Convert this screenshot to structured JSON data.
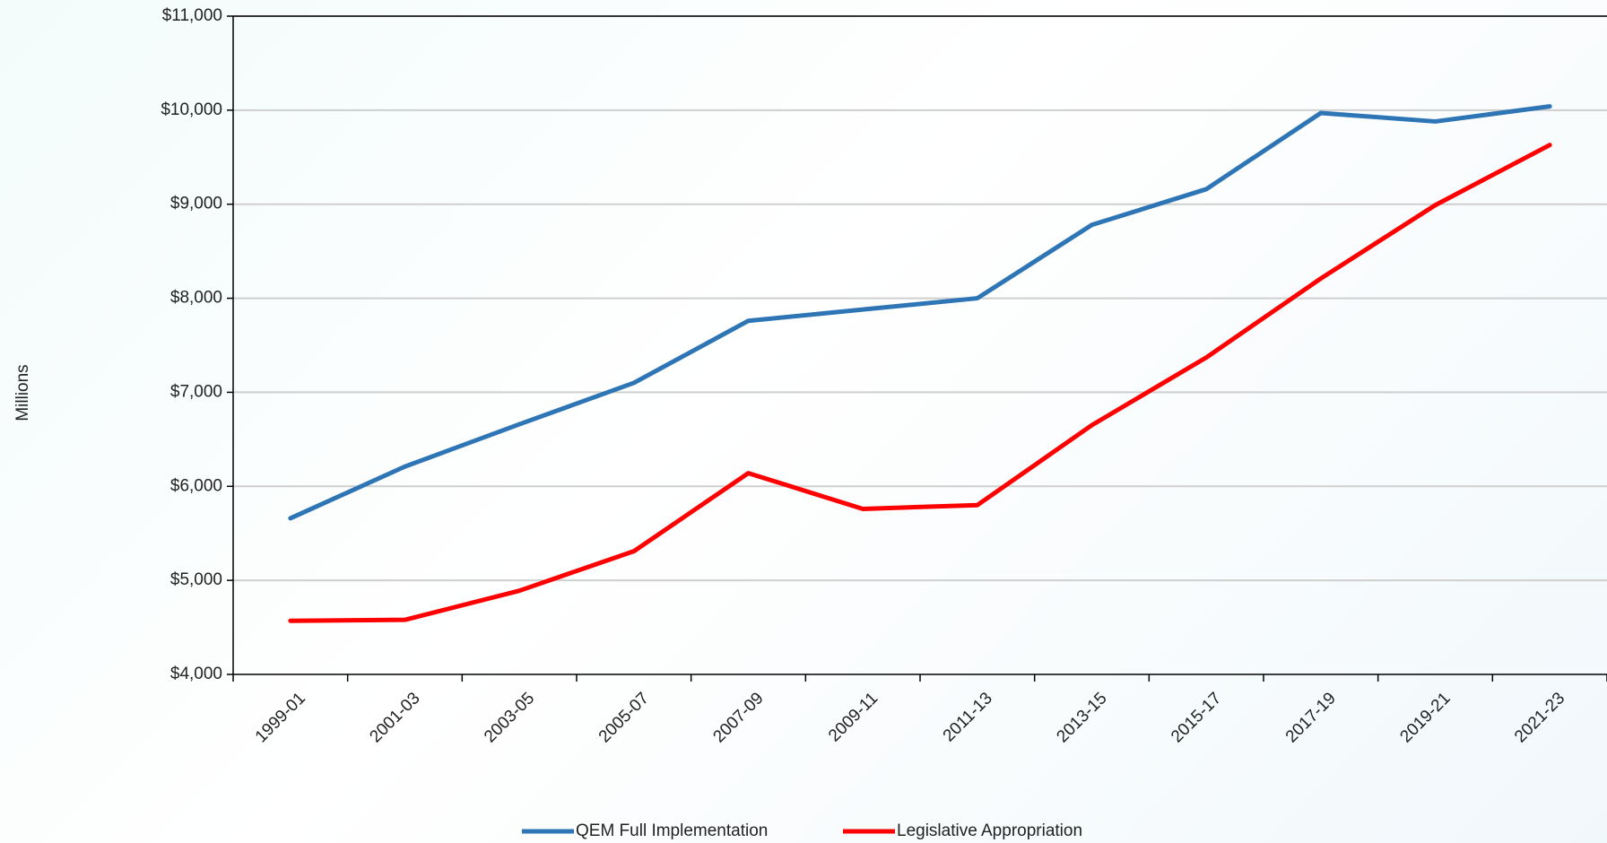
{
  "chart_data": {
    "type": "line",
    "y_axis_label": "Millions",
    "categories": [
      "1999-01",
      "2001-03",
      "2003-05",
      "2005-07",
      "2007-09",
      "2009-11",
      "2011-13",
      "2013-15",
      "2015-17",
      "2017-19",
      "2019-21",
      "2021-23"
    ],
    "series": [
      {
        "name": "QEM Full Implementation",
        "color": "#2e75b6",
        "values": [
          5660,
          6210,
          6660,
          7100,
          7760,
          7880,
          8000,
          8780,
          9160,
          9970,
          9880,
          10040
        ]
      },
      {
        "name": "Legislative Appropriation",
        "color": "#ff0000",
        "values": [
          4570,
          4580,
          4890,
          5310,
          6140,
          5760,
          5800,
          6650,
          7370,
          8210,
          8990,
          9630
        ]
      }
    ],
    "ylim": [
      4000,
      11000
    ],
    "yticks": [
      {
        "value": 4000,
        "label": "$4,000"
      },
      {
        "value": 5000,
        "label": "$5,000"
      },
      {
        "value": 6000,
        "label": "$6,000"
      },
      {
        "value": 7000,
        "label": "$7,000"
      },
      {
        "value": 8000,
        "label": "$8,000"
      },
      {
        "value": 9000,
        "label": "$9,000"
      },
      {
        "value": 10000,
        "label": "$10,000"
      },
      {
        "value": 11000,
        "label": "$11,000"
      }
    ],
    "grid": true,
    "legend": "bottom"
  }
}
